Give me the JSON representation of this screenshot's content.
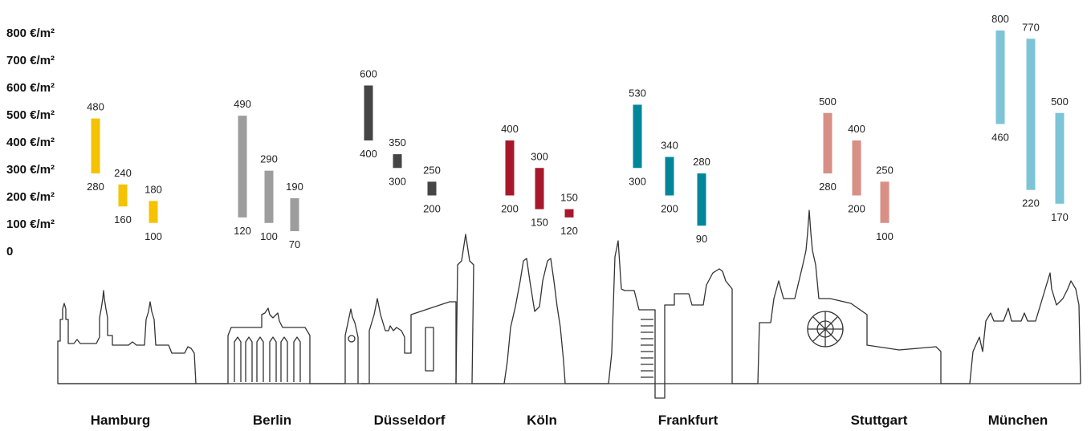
{
  "chart_data": {
    "type": "bar",
    "y_unit": "€/m²",
    "ylim": [
      0,
      800
    ],
    "y_ticks": [
      "0",
      "100 €/m²",
      "200 €/m²",
      "300 €/m²",
      "400 €/m²",
      "500 €/m²",
      "600 €/m²",
      "700 €/m²",
      "800 €/m²"
    ],
    "categories": [
      "Hamburg",
      "Berlin",
      "Düsseldorf",
      "Köln",
      "Frankfurt",
      "Stuttgart",
      "München"
    ],
    "city_colors": [
      "#f5c200",
      "#9d9d9d",
      "#454545",
      "#a8182b",
      "#00869b",
      "#d88f85",
      "#7cc4d6"
    ],
    "ranges": [
      [
        {
          "low": 280,
          "high": 480
        },
        {
          "low": 160,
          "high": 240
        },
        {
          "low": 100,
          "high": 180
        }
      ],
      [
        {
          "low": 120,
          "high": 490
        },
        {
          "low": 100,
          "high": 290
        },
        {
          "low": 70,
          "high": 190
        }
      ],
      [
        {
          "low": 400,
          "high": 600
        },
        {
          "low": 300,
          "high": 350
        },
        {
          "low": 200,
          "high": 250
        }
      ],
      [
        {
          "low": 200,
          "high": 400
        },
        {
          "low": 150,
          "high": 300
        },
        {
          "low": 120,
          "high": 150
        }
      ],
      [
        {
          "low": 300,
          "high": 530
        },
        {
          "low": 200,
          "high": 340
        },
        {
          "low": 90,
          "high": 280
        }
      ],
      [
        {
          "low": 280,
          "high": 500
        },
        {
          "low": 200,
          "high": 400
        },
        {
          "low": 100,
          "high": 250
        }
      ],
      [
        {
          "low": 460,
          "high": 800
        },
        {
          "low": 220,
          "high": 770
        },
        {
          "low": 170,
          "high": 500
        }
      ]
    ]
  }
}
